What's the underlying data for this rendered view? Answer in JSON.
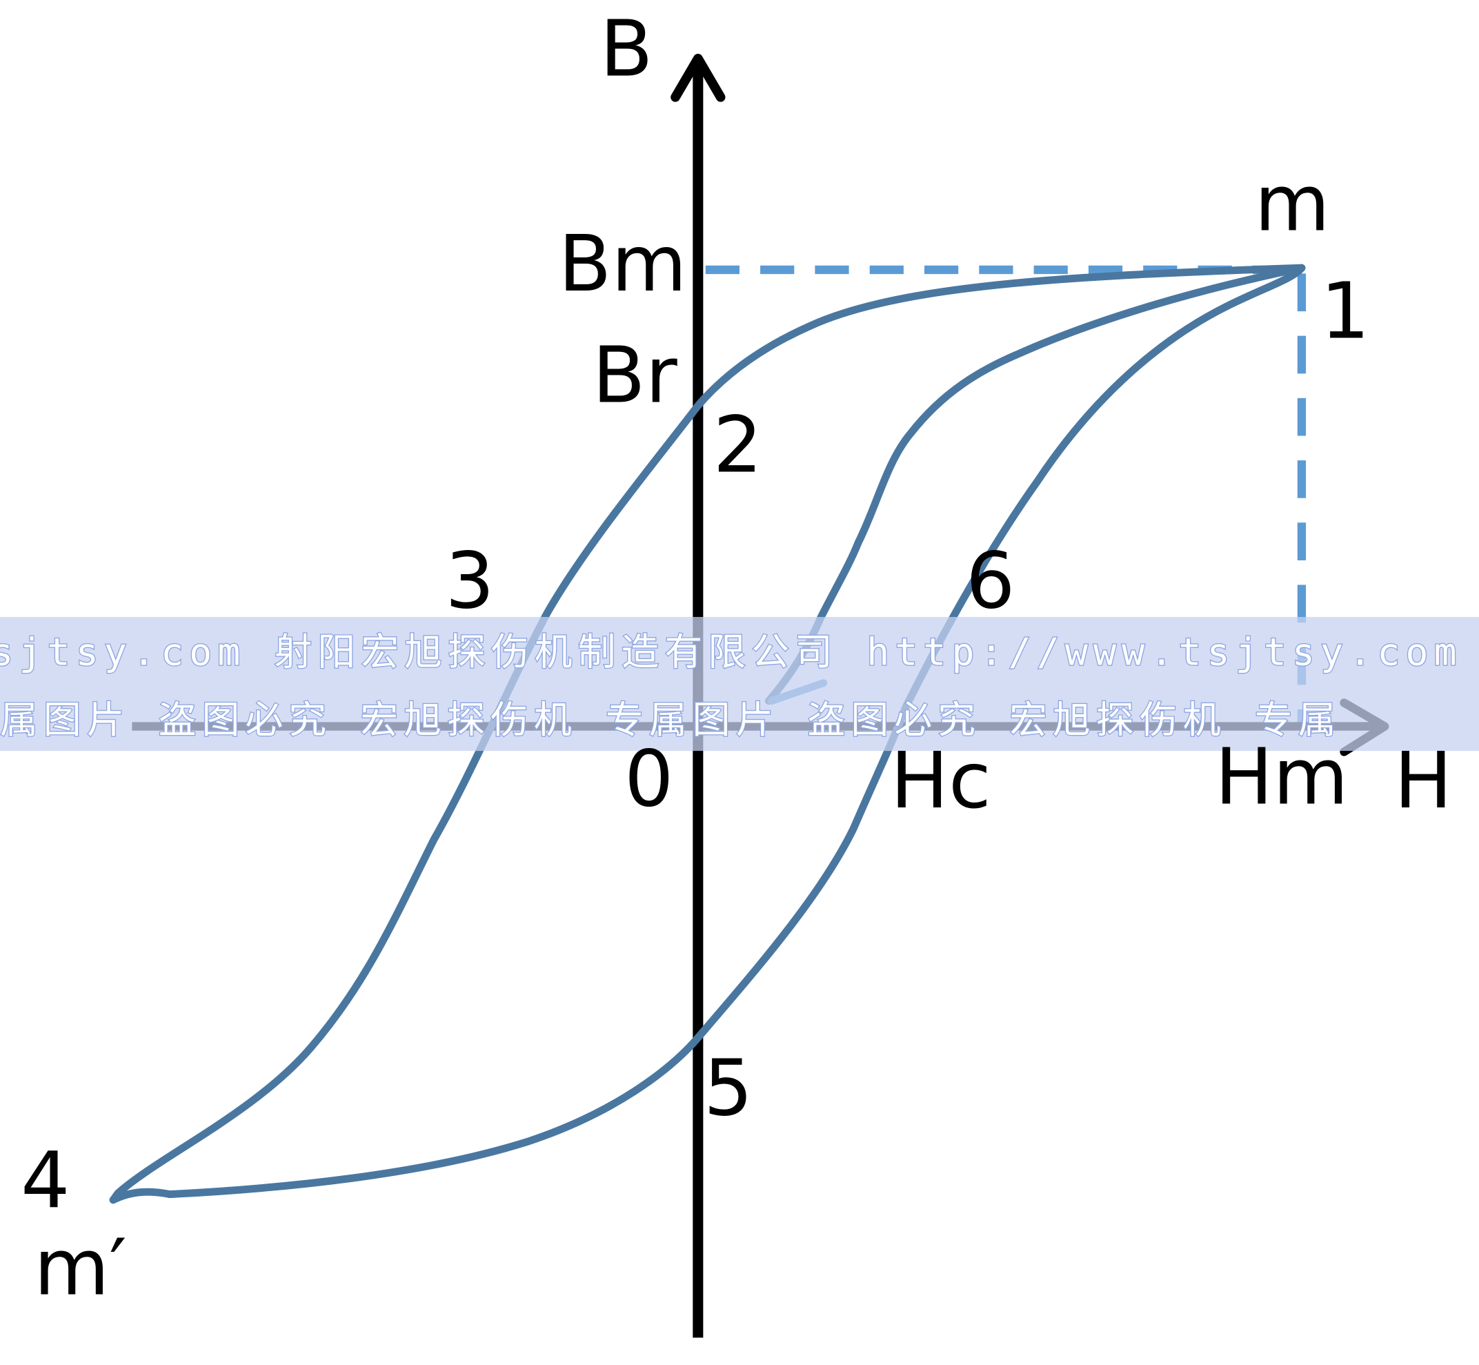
{
  "diagram": {
    "axes": {
      "y_label": "B",
      "x_label": "H",
      "origin_label": "0"
    },
    "labels": {
      "m": "m",
      "Bm": "Bm",
      "Br": "Br",
      "Hc": "Hc",
      "Hm": "Hm",
      "m_prime": "m′",
      "p1": "1",
      "p2": "2",
      "p3": "3",
      "p4": "4",
      "p5": "5",
      "p6": "6"
    },
    "colors": {
      "curve": "#4a77a0",
      "dashed_guides": "#5b9bd5",
      "initial_segment": "#6aa0d8",
      "axes": "#000000",
      "watermark_band": "#c6d2f0"
    }
  },
  "watermark": {
    "line1": "sjtsy.com 射阳宏旭探伤机制造有限公司  http://www.tsjtsy.com",
    "line2": "属图片 盗图必究   宏旭探伤机 专属图片 盗图必究   宏旭探伤机 专属"
  }
}
